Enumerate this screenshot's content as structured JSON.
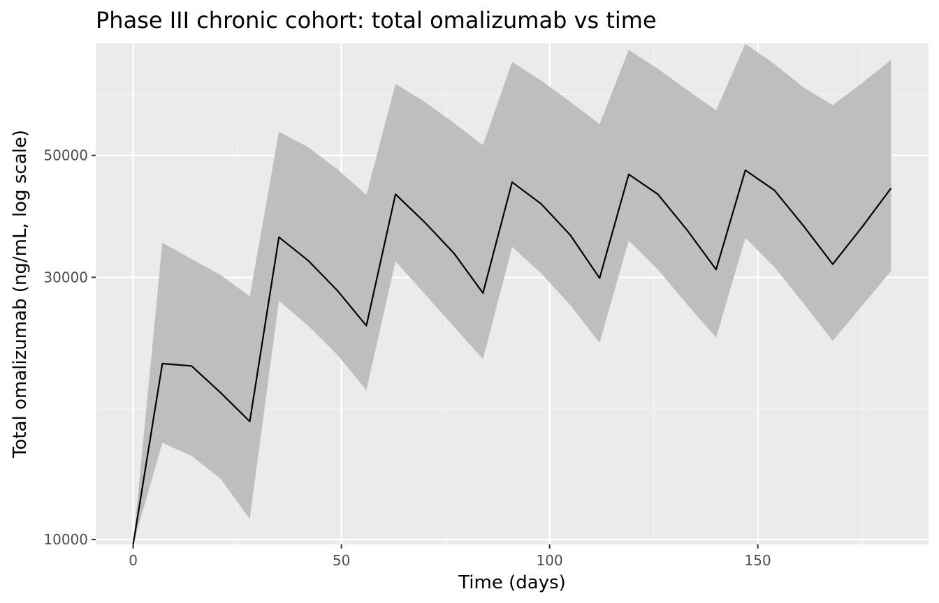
{
  "chart_data": {
    "type": "line",
    "title": "Phase III chronic cohort: total omalizumab vs time",
    "xlabel": "Time (days)",
    "ylabel": "Total omalizumab (ng/mL, log scale)",
    "y_scale": "log",
    "xlim": [
      -9,
      191
    ],
    "ylim": [
      9800,
      80000
    ],
    "x_ticks": [
      0,
      50,
      100,
      150
    ],
    "x_tick_labels": [
      "0",
      "50",
      "100",
      "150"
    ],
    "y_ticks": [
      10000,
      30000,
      50000
    ],
    "y_tick_labels": [
      "10000",
      "30000",
      "50000"
    ],
    "grid": true,
    "x": [
      0,
      7,
      14,
      21,
      28,
      35,
      42,
      49,
      56,
      63,
      70,
      77,
      84,
      91,
      98,
      105,
      112,
      119,
      126,
      133,
      140,
      147,
      154,
      161,
      168,
      175,
      182
    ],
    "series": [
      {
        "role": "median",
        "values": [
          9800,
          20900,
          20700,
          18500,
          16400,
          35500,
          32200,
          28400,
          24500,
          42500,
          37800,
          33200,
          28100,
          44700,
          40800,
          35800,
          29900,
          46200,
          42500,
          36600,
          31000,
          47000,
          43200,
          37200,
          31700,
          37000,
          43600
        ]
      },
      {
        "role": "lower",
        "values": [
          9800,
          15000,
          14200,
          12900,
          10900,
          27200,
          24500,
          21700,
          18700,
          32100,
          28000,
          24400,
          21300,
          34100,
          30500,
          26700,
          22800,
          35000,
          31000,
          26800,
          23300,
          35400,
          31300,
          26900,
          23000,
          26600,
          30800
        ]
      },
      {
        "role": "upper",
        "values": [
          9800,
          34700,
          32400,
          30300,
          27700,
          55200,
          51800,
          47200,
          42400,
          67500,
          62600,
          57300,
          52200,
          74000,
          68400,
          62600,
          57000,
          77800,
          71900,
          65800,
          60400,
          79800,
          73300,
          66500,
          61700,
          67700,
          74600
        ]
      }
    ],
    "colors": {
      "panel_background": "#ebebeb",
      "grid_major": "#ffffff",
      "grid_minor": "#f5f5f5",
      "ribbon": "#bebebe",
      "line": "#000000",
      "tick": "#333333"
    }
  }
}
